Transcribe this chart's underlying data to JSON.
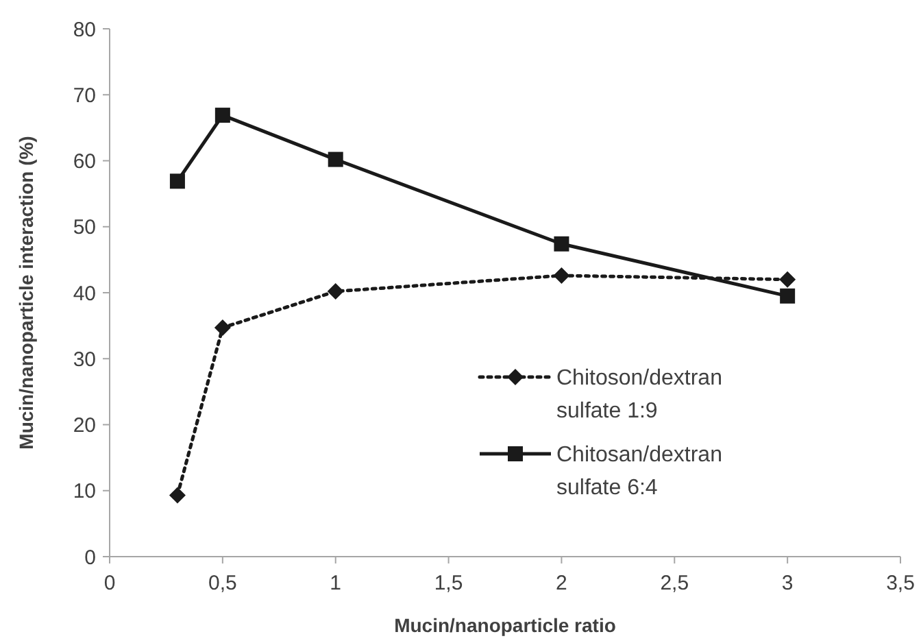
{
  "chart_data": {
    "type": "line",
    "xlabel": "Mucin/nanoparticle ratio",
    "ylabel": "Mucin/nanoparticle interaction (%)",
    "xlim": [
      0,
      3.5
    ],
    "ylim": [
      0,
      80
    ],
    "xticks": [
      0,
      {
        "value": 0.5,
        "label": "0,5"
      },
      1,
      {
        "value": 1.5,
        "label": "1,5"
      },
      2,
      {
        "value": 2.5,
        "label": "2,5"
      },
      3,
      {
        "value": 3.5,
        "label": "3,5"
      }
    ],
    "yticks": [
      0,
      10,
      20,
      30,
      40,
      50,
      60,
      70,
      80
    ],
    "x": [
      0.3,
      0.5,
      1,
      2,
      3
    ],
    "legend": "bottom",
    "grid": false,
    "series": [
      {
        "name": "Chitoson/dextran sulfate 1:9",
        "color": "#1a1a1a",
        "values": [
          9.3,
          34.7,
          40.2,
          42.6,
          42.0
        ],
        "marker": "diamond",
        "line_style": "dotted"
      },
      {
        "name": "Chitosan/dextran sulfate 6:4",
        "color": "#1a1a1a",
        "values": [
          56.9,
          66.9,
          60.2,
          47.4,
          39.5
        ],
        "marker": "square",
        "line_style": "solid"
      }
    ]
  }
}
